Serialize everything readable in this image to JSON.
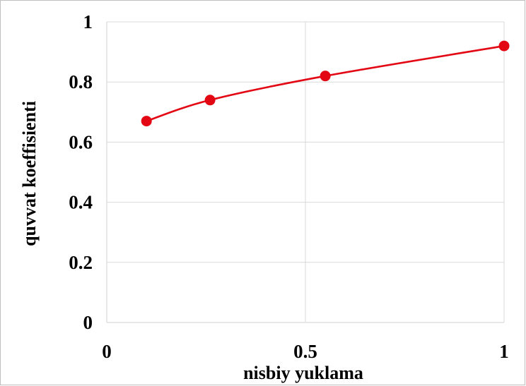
{
  "chart_data": {
    "type": "line",
    "title": "",
    "xlabel": "nisbiy  yuklama",
    "ylabel": "quvvat  koeffisienti",
    "xlim": [
      0,
      1
    ],
    "ylim": [
      0,
      1
    ],
    "x_ticks": [
      "0",
      "0.5",
      "1"
    ],
    "y_ticks": [
      "0",
      "0.2",
      "0.4",
      "0.6",
      "0.8",
      "1"
    ],
    "grid": true,
    "legend": "none",
    "smooth": true,
    "series": [
      {
        "color": "#e30613",
        "marker": "circle",
        "points": [
          {
            "x": 0.1,
            "y": 0.67
          },
          {
            "x": 0.26,
            "y": 0.74
          },
          {
            "x": 0.55,
            "y": 0.82
          },
          {
            "x": 1.0,
            "y": 0.92
          }
        ]
      }
    ]
  }
}
